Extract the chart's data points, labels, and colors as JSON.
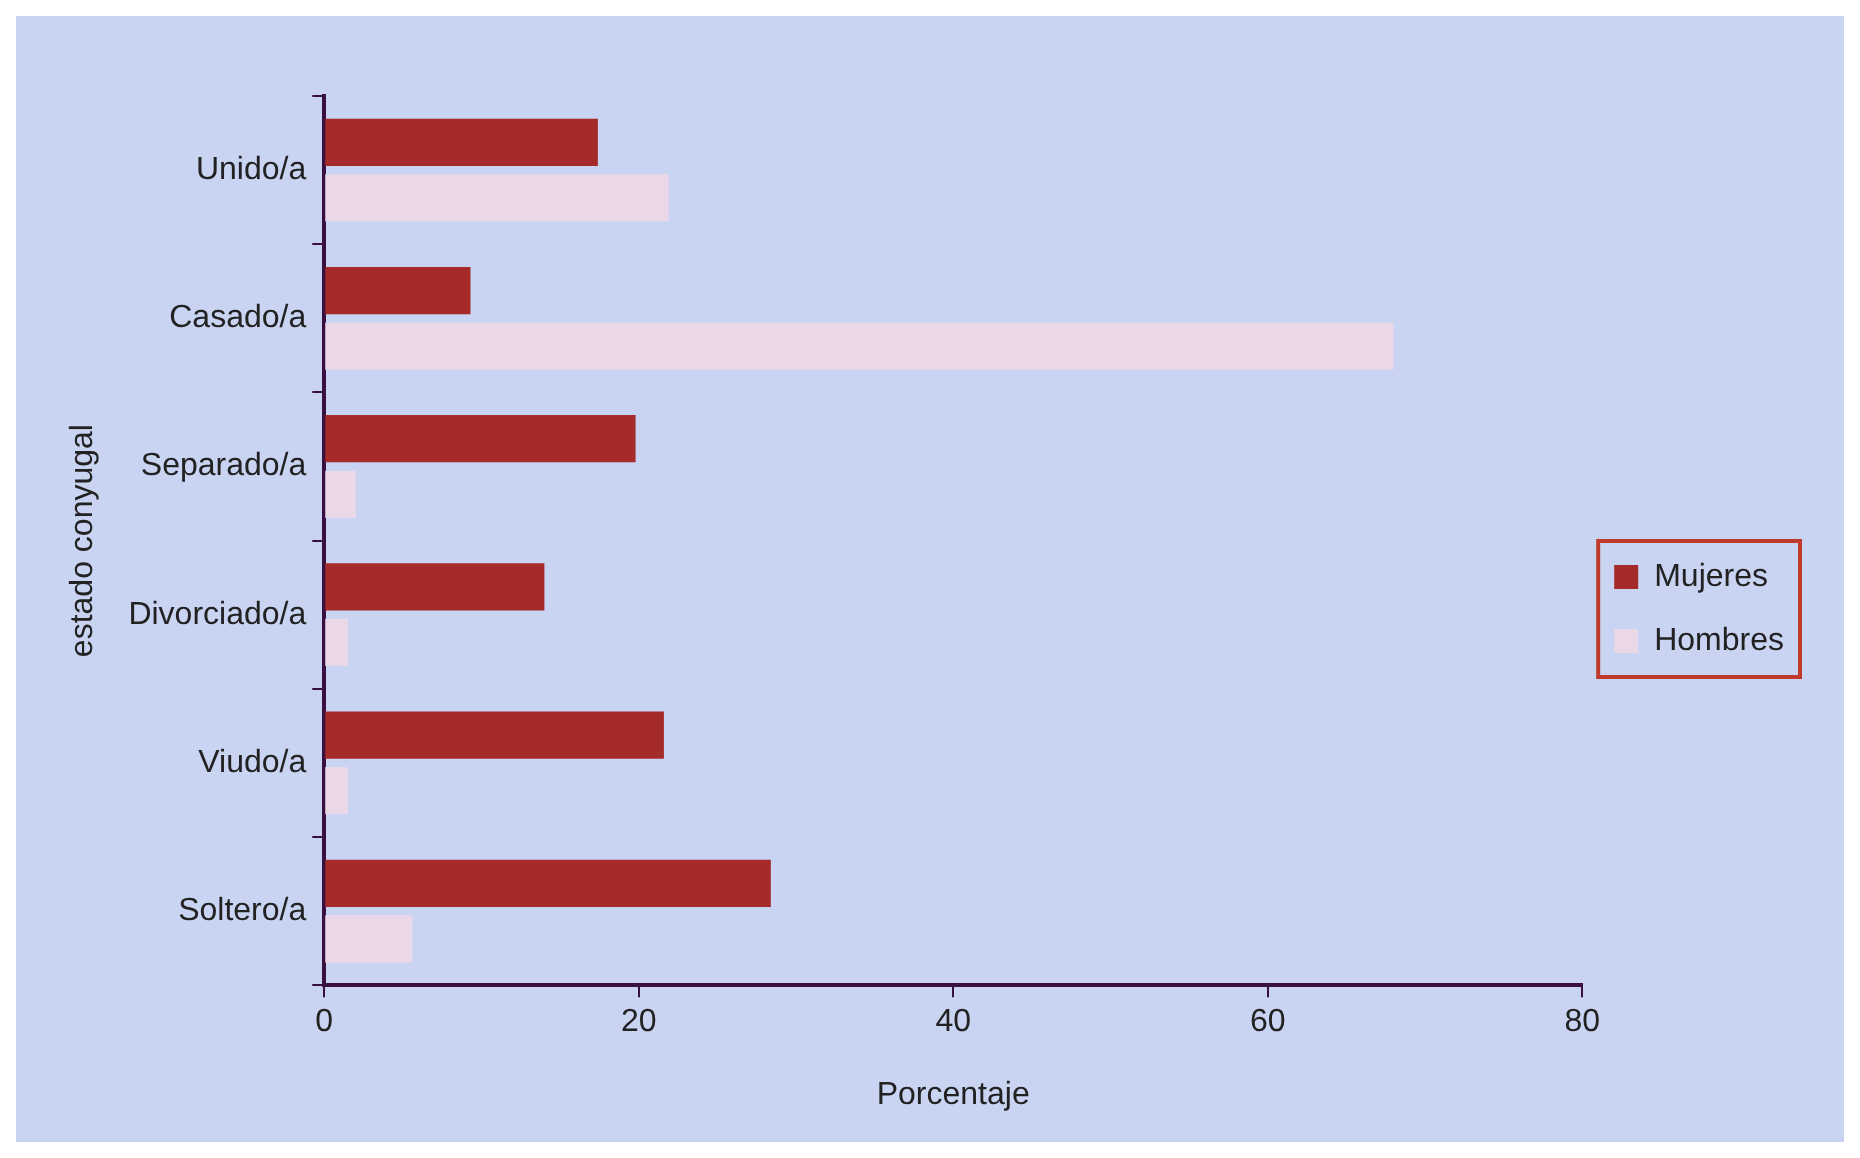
{
  "chart_data": {
    "type": "bar",
    "orientation": "horizontal",
    "xlabel": "Porcentaje",
    "ylabel": "estado conyugal",
    "categories": [
      "Unido/a",
      "Casado/a",
      "Separado/a",
      "Divorciado/a",
      "Viudo/a",
      "Soltero/a"
    ],
    "series": [
      {
        "name": "Mujeres",
        "color": "#a52a2a",
        "values": [
          17.4,
          9.3,
          19.8,
          14,
          21.6,
          28.4
        ]
      },
      {
        "name": "Hombres",
        "color": "#ead8e8",
        "values": [
          21.9,
          68,
          2,
          1.5,
          1.5,
          5.6
        ]
      }
    ],
    "xlim": [
      0,
      80
    ],
    "xticks": [
      0,
      20,
      40,
      60,
      80
    ],
    "grid": false,
    "legend": "right"
  }
}
